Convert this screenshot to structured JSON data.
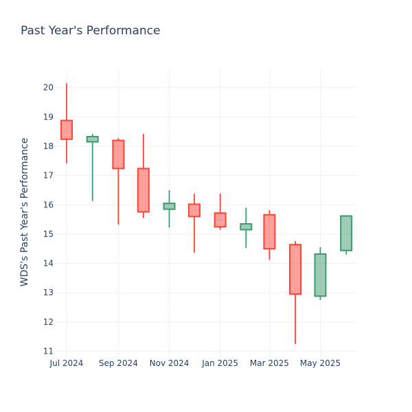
{
  "chart_data": {
    "type": "candlestick",
    "title": "Past Year's Performance",
    "xlabel": "",
    "ylabel": "WDS's Past Year's Performance",
    "ylim": [
      10.8,
      20.65
    ],
    "y_ticks": [
      11,
      12,
      13,
      14,
      15,
      16,
      17,
      18,
      19,
      20
    ],
    "x_ticks": [
      {
        "date": "2024-07-01",
        "label": "Jul 2024"
      },
      {
        "date": "2024-09-01",
        "label": "Sep 2024"
      },
      {
        "date": "2024-11-01",
        "label": "Nov 2024"
      },
      {
        "date": "2025-01-01",
        "label": "Jan 2025"
      },
      {
        "date": "2025-03-01",
        "label": "Mar 2025"
      },
      {
        "date": "2025-05-01",
        "label": "May 2025"
      }
    ],
    "xlim": [
      "2024-06-17",
      "2025-06-14"
    ],
    "colors": {
      "increasing": "#3d9970",
      "decreasing": "#ff4136"
    },
    "grid": true,
    "candles": [
      {
        "date": "2024-07-01",
        "open": 18.88,
        "high": 20.15,
        "low": 17.42,
        "close": 18.24
      },
      {
        "date": "2024-08-01",
        "open": 18.15,
        "high": 18.42,
        "low": 16.13,
        "close": 18.33
      },
      {
        "date": "2024-09-01",
        "open": 18.2,
        "high": 18.28,
        "low": 15.33,
        "close": 17.24
      },
      {
        "date": "2024-10-01",
        "open": 17.24,
        "high": 18.42,
        "low": 15.55,
        "close": 15.76
      },
      {
        "date": "2024-11-01",
        "open": 15.85,
        "high": 16.5,
        "low": 15.22,
        "close": 16.05
      },
      {
        "date": "2024-12-01",
        "open": 16.02,
        "high": 16.38,
        "low": 14.36,
        "close": 15.6
      },
      {
        "date": "2025-01-01",
        "open": 15.72,
        "high": 16.38,
        "low": 15.15,
        "close": 15.25
      },
      {
        "date": "2025-02-01",
        "open": 15.15,
        "high": 15.9,
        "low": 14.52,
        "close": 15.35
      },
      {
        "date": "2025-03-01",
        "open": 15.66,
        "high": 15.82,
        "low": 14.12,
        "close": 14.5
      },
      {
        "date": "2025-04-01",
        "open": 14.64,
        "high": 14.76,
        "low": 11.25,
        "close": 12.95
      },
      {
        "date": "2025-05-01",
        "open": 12.88,
        "high": 14.55,
        "low": 12.75,
        "close": 14.32
      },
      {
        "date": "2025-06-01",
        "open": 14.44,
        "high": 15.62,
        "low": 14.3,
        "close": 15.62
      }
    ]
  }
}
